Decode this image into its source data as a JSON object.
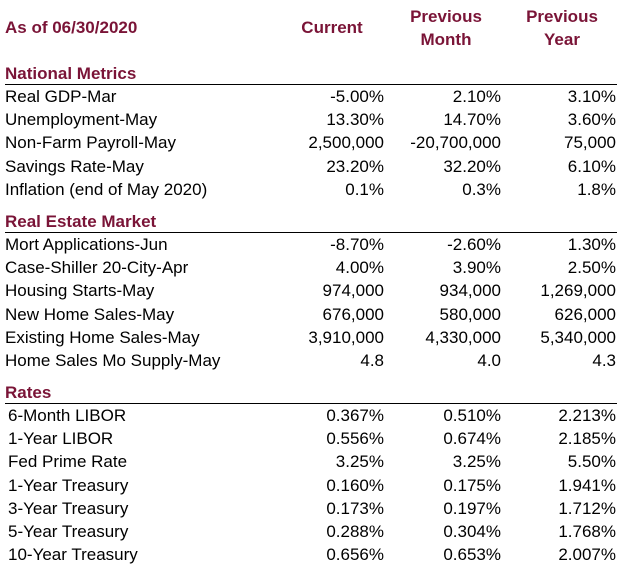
{
  "header": {
    "as_of": "As of 06/30/2020",
    "current": "Current",
    "previous_month": "Previous Month",
    "previous_year": "Previous Year"
  },
  "sections": [
    {
      "title": "National Metrics",
      "rows": [
        {
          "label": "Real GDP-Mar",
          "current": "-5.00%",
          "prev_month": "2.10%",
          "prev_year": "3.10%"
        },
        {
          "label": "Unemployment-May",
          "current": "13.30%",
          "prev_month": "14.70%",
          "prev_year": "3.60%"
        },
        {
          "label": "Non-Farm Payroll-May",
          "current": "2,500,000",
          "prev_month": "-20,700,000",
          "prev_year": "75,000"
        },
        {
          "label": "Savings Rate-May",
          "current": "23.20%",
          "prev_month": "32.20%",
          "prev_year": "6.10%"
        },
        {
          "label": "Inflation (end of May 2020)",
          "current": "0.1%",
          "prev_month": "0.3%",
          "prev_year": "1.8%"
        }
      ]
    },
    {
      "title": "Real Estate Market",
      "rows": [
        {
          "label": "Mort Applications-Jun",
          "current": "-8.70%",
          "prev_month": "-2.60%",
          "prev_year": "1.30%"
        },
        {
          "label": "Case-Shiller 20-City-Apr",
          "current": "4.00%",
          "prev_month": "3.90%",
          "prev_year": "2.50%"
        },
        {
          "label": "Housing Starts-May",
          "current": "974,000",
          "prev_month": "934,000",
          "prev_year": "1,269,000"
        },
        {
          "label": "New Home Sales-May",
          "current": "676,000",
          "prev_month": "580,000",
          "prev_year": "626,000"
        },
        {
          "label": "Existing Home Sales-May",
          "current": "3,910,000",
          "prev_month": "4,330,000",
          "prev_year": "5,340,000"
        },
        {
          "label": "Home Sales Mo Supply-May",
          "current": "4.8",
          "prev_month": "4.0",
          "prev_year": "4.3"
        }
      ]
    },
    {
      "title": "Rates",
      "rows": [
        {
          "label": "6-Month LIBOR",
          "current": "0.367%",
          "prev_month": "0.510%",
          "prev_year": "2.213%"
        },
        {
          "label": "1-Year LIBOR",
          "current": "0.556%",
          "prev_month": "0.674%",
          "prev_year": "2.185%"
        },
        {
          "label": "Fed Prime Rate",
          "current": "3.25%",
          "prev_month": "3.25%",
          "prev_year": "5.50%"
        },
        {
          "label": "1-Year Treasury",
          "current": "0.160%",
          "prev_month": "0.175%",
          "prev_year": "1.941%"
        },
        {
          "label": "3-Year Treasury",
          "current": "0.173%",
          "prev_month": "0.197%",
          "prev_year": "1.712%"
        },
        {
          "label": "5-Year Treasury",
          "current": "0.288%",
          "prev_month": "0.304%",
          "prev_year": "1.768%"
        },
        {
          "label": "10-Year Treasury",
          "current": "0.656%",
          "prev_month": "0.653%",
          "prev_year": "2.007%"
        }
      ]
    }
  ],
  "colors": {
    "heading": "#7a1437",
    "text": "#000000",
    "background": "#ffffff"
  }
}
